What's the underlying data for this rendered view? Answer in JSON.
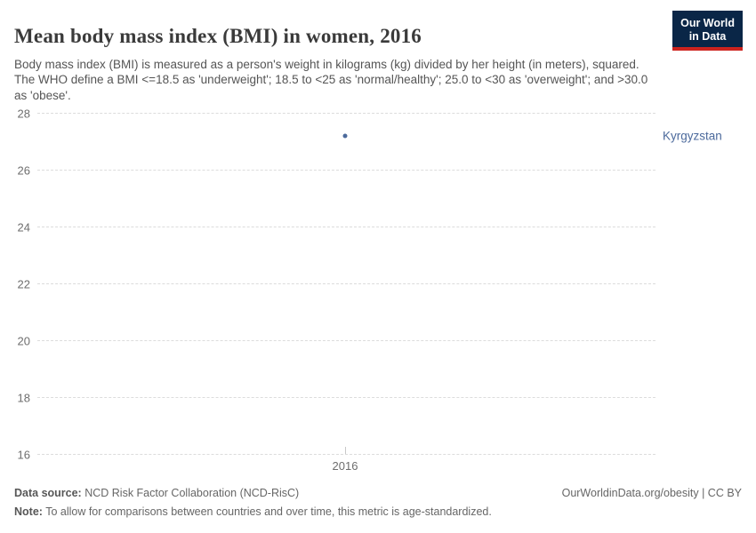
{
  "header": {
    "title": "Mean body mass index (BMI) in women, 2016",
    "subtitle": "Body mass index (BMI) is measured as a person's weight in kilograms (kg) divided by her height (in meters), squared. The WHO define a BMI <=18.5 as 'underweight'; 18.5 to <25 as 'normal/healthy'; 25.0 to <30 as 'overweight'; and >30.0 as 'obese'.",
    "logo": {
      "line1": "Our World",
      "line2": "in Data",
      "background_color": "#0A2647",
      "stripe_color": "#CD231E"
    }
  },
  "chart_data": {
    "type": "scatter",
    "title": "Mean body mass index (BMI) in women, 2016",
    "x": [
      2016
    ],
    "series": [
      {
        "name": "Kyrgyzstan",
        "values": [
          27.2
        ],
        "color": "#4C6A9C"
      }
    ],
    "xlabel": "",
    "ylabel": "",
    "ylim": [
      16,
      28
    ],
    "yticks": [
      28,
      26,
      24,
      22,
      20,
      18,
      16
    ],
    "xtick_labels": [
      "2016"
    ],
    "grid": "horizontal-dashed",
    "gridline_color": "#dcdcdc",
    "tick_label_color": "#6e6e6e",
    "legend_position": "entity label right of point",
    "entity_label": "Kyrgyzstan"
  },
  "footer": {
    "data_source_label": "Data source:",
    "data_source": " NCD Risk Factor Collaboration (NCD-RisC)",
    "rights": "OurWorldinData.org/obesity | CC BY",
    "note_label": "Note:",
    "note": " To allow for comparisons between countries and over time, this metric is age-standardized."
  }
}
